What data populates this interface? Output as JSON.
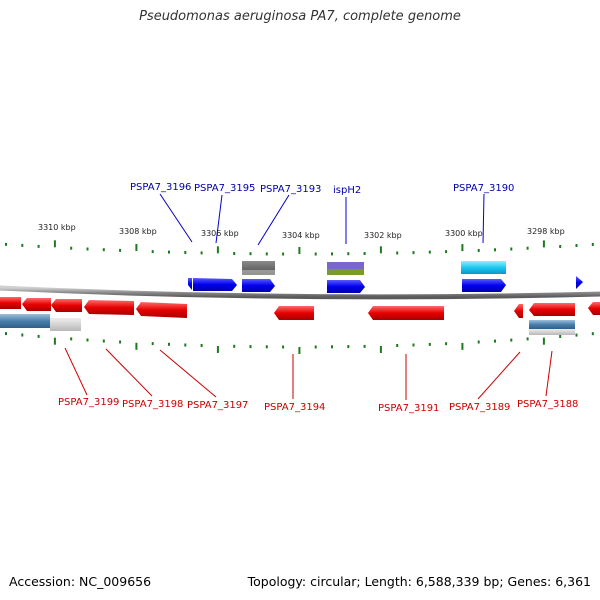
{
  "title": "Pseudomonas aeruginosa PA7, complete genome",
  "footer": {
    "accession": "Accession: NC_009656",
    "stats": "Topology: circular; Length: 6,588,339 bp; Genes: 6,361"
  },
  "colors": {
    "forward_gene": "#0000ee",
    "reverse_gene": "#e60000",
    "forward_label": "#0000aa",
    "reverse_label": "#cc0000",
    "tick": "#1e7a1e",
    "backbone": "#8c8c8c"
  },
  "scale_labels": [
    "3310 kbp",
    "3308 kbp",
    "3306 kbp",
    "3304 kbp",
    "3302 kbp",
    "3300 kbp",
    "3298 kbp"
  ],
  "genes_top": [
    "PSPA7_3196",
    "PSPA7_3195",
    "PSPA7_3193",
    "ispH2",
    "PSPA7_3190"
  ],
  "genes_bottom": [
    "PSPA7_3199",
    "PSPA7_3198",
    "PSPA7_3197",
    "PSPA7_3194",
    "PSPA7_3191",
    "PSPA7_3189",
    "PSPA7_3188"
  ]
}
